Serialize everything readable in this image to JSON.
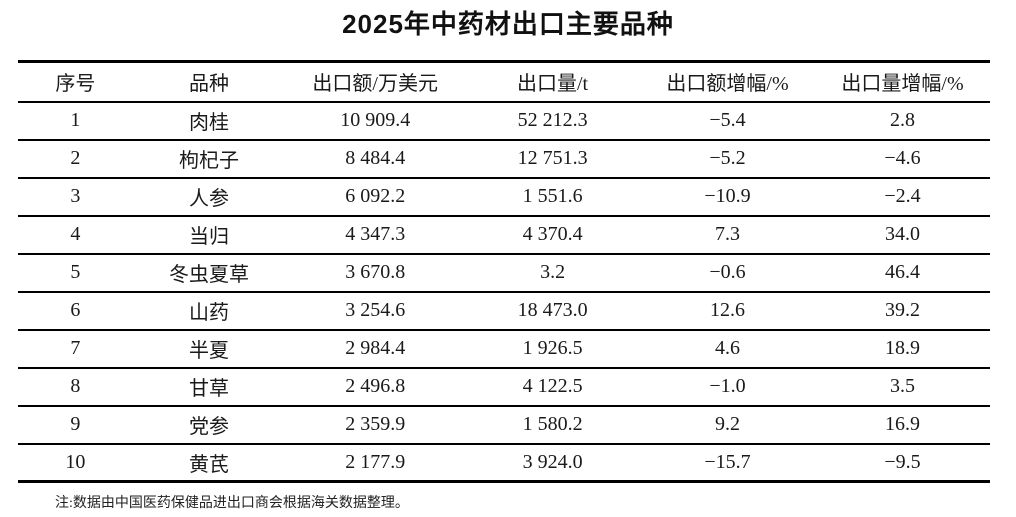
{
  "title": "2025年中药材出口主要品种",
  "table": {
    "columns": [
      "序号",
      "品种",
      "出口额/万美元",
      "出口量/t",
      "出口额增幅/%",
      "出口量增幅/%"
    ],
    "rows": [
      [
        "1",
        "肉桂",
        "10 909.4",
        "52 212.3",
        "−5.4",
        "2.8"
      ],
      [
        "2",
        "枸杞子",
        "8 484.4",
        "12 751.3",
        "−5.2",
        "−4.6"
      ],
      [
        "3",
        "人参",
        "6 092.2",
        "1 551.6",
        "−10.9",
        "−2.4"
      ],
      [
        "4",
        "当归",
        "4 347.3",
        "4 370.4",
        "7.3",
        "34.0"
      ],
      [
        "5",
        "冬虫夏草",
        "3 670.8",
        "3.2",
        "−0.6",
        "46.4"
      ],
      [
        "6",
        "山药",
        "3 254.6",
        "18 473.0",
        "12.6",
        "39.2"
      ],
      [
        "7",
        "半夏",
        "2 984.4",
        "1 926.5",
        "4.6",
        "18.9"
      ],
      [
        "8",
        "甘草",
        "2 496.8",
        "4 122.5",
        "−1.0",
        "3.5"
      ],
      [
        "9",
        "党参",
        "2 359.9",
        "1 580.2",
        "9.2",
        "16.9"
      ],
      [
        "10",
        "黄芪",
        "2 177.9",
        "3 924.0",
        "−15.7",
        "−9.5"
      ]
    ]
  },
  "note": "注:数据由中国医药保健品进出口商会根据海关数据整理。",
  "colors": {
    "background": "#ffffff",
    "text": "#1a1a1a",
    "rule_line": "#000000"
  }
}
